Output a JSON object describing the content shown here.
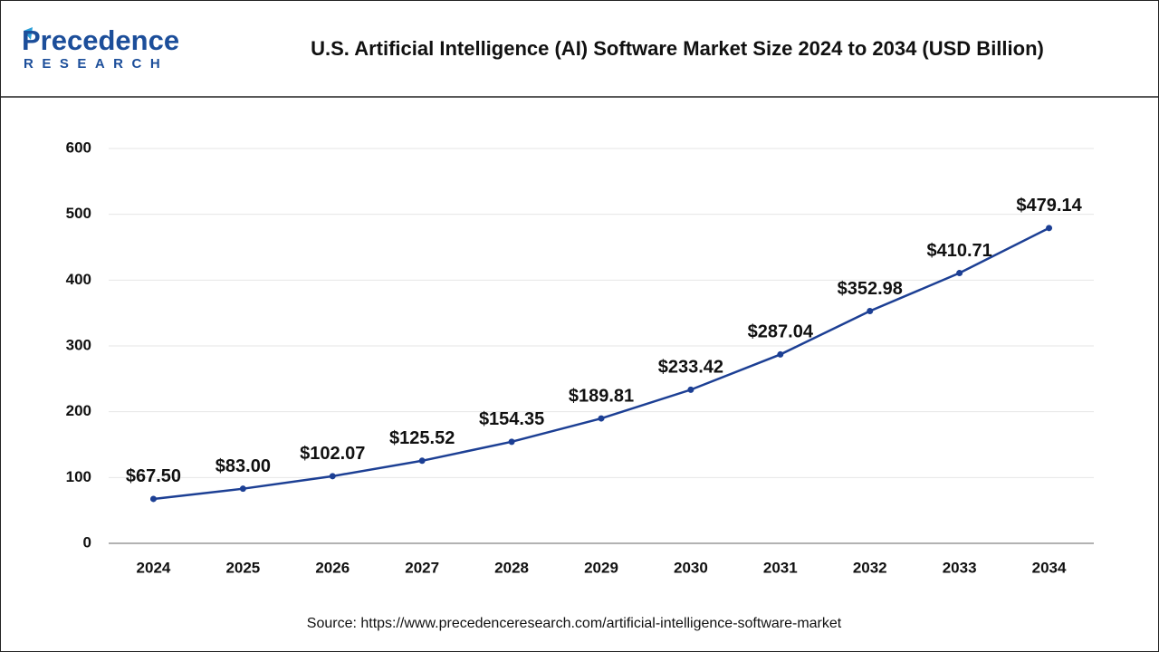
{
  "brand": {
    "name": "Precedence",
    "tagline": "RESEARCH"
  },
  "chart_data": {
    "type": "line",
    "title": "U.S. Artificial Intelligence (AI) Software Market Size 2024 to 2034 (USD Billion)",
    "categories": [
      "2024",
      "2025",
      "2026",
      "2027",
      "2028",
      "2029",
      "2030",
      "2031",
      "2032",
      "2033",
      "2034"
    ],
    "values": [
      67.5,
      83.0,
      102.07,
      125.52,
      154.35,
      189.81,
      233.42,
      287.04,
      352.98,
      410.71,
      479.14
    ],
    "value_labels": [
      "$67.50",
      "$83.00",
      "$102.07",
      "$125.52",
      "$154.35",
      "$189.81",
      "$233.42",
      "$287.04",
      "$352.98",
      "$410.71",
      "$479.14"
    ],
    "color": "#1c3f94",
    "ylim": [
      0,
      600
    ],
    "yticks": [
      0,
      100,
      200,
      300,
      400,
      500,
      600
    ],
    "grid": true,
    "source": "Source: https://www.precedenceresearch.com/artificial-intelligence-software-market"
  }
}
